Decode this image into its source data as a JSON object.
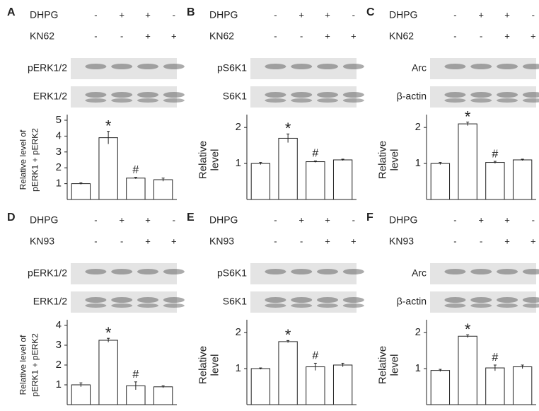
{
  "chart_data": [
    {
      "type": "bar",
      "panel": "A",
      "treatments": [
        {
          "name": "DHPG",
          "signs": [
            "-",
            "+",
            "+",
            "-"
          ]
        },
        {
          "name": "KN62",
          "signs": [
            "-",
            "-",
            "+",
            "+"
          ]
        }
      ],
      "blots": [
        "pERK1/2",
        "ERK1/2"
      ],
      "ylabel": [
        "Relative level of",
        "pERK1 + pERK2"
      ],
      "values": [
        1,
        3.9,
        1.35,
        1.25
      ],
      "errors": [
        0.05,
        0.4,
        0.05,
        0.1
      ],
      "markers": [
        null,
        "*",
        "#",
        null
      ],
      "color": "#ffffff",
      "ylim": [
        0,
        5
      ],
      "yticks": [
        1,
        2,
        3,
        4,
        5
      ]
    },
    {
      "type": "bar",
      "panel": "B",
      "treatments": [
        {
          "name": "DHPG",
          "signs": [
            "-",
            "+",
            "+",
            "-"
          ]
        },
        {
          "name": "KN62",
          "signs": [
            "-",
            "-",
            "+",
            "+"
          ]
        }
      ],
      "blots": [
        "pS6K1",
        "S6K1"
      ],
      "ylabel": [
        "Relative",
        "level"
      ],
      "values": [
        1,
        1.7,
        1.05,
        1.1
      ],
      "errors": [
        0.03,
        0.12,
        0.02,
        0.02
      ],
      "markers": [
        null,
        "*",
        "#",
        null
      ],
      "color": "#ffffff",
      "ylim": [
        0,
        2.2
      ],
      "yticks": [
        1,
        2
      ]
    },
    {
      "type": "bar",
      "panel": "C",
      "treatments": [
        {
          "name": "DHPG",
          "signs": [
            "-",
            "+",
            "+",
            "-"
          ]
        },
        {
          "name": "KN62",
          "signs": [
            "-",
            "-",
            "+",
            "+"
          ]
        }
      ],
      "blots": [
        "Arc",
        "β-actin"
      ],
      "ylabel": [
        "Relative",
        "level"
      ],
      "values": [
        1,
        2.1,
        1.03,
        1.1
      ],
      "errors": [
        0.03,
        0.05,
        0.03,
        0.02
      ],
      "markers": [
        null,
        "*",
        "#",
        null
      ],
      "color": "#ffffff",
      "ylim": [
        0,
        2.2
      ],
      "yticks": [
        1,
        2
      ]
    },
    {
      "type": "bar",
      "panel": "D",
      "treatments": [
        {
          "name": "DHPG",
          "signs": [
            "-",
            "+",
            "+",
            "-"
          ]
        },
        {
          "name": "KN93",
          "signs": [
            "-",
            "-",
            "+",
            "+"
          ]
        }
      ],
      "blots": [
        "pERK1/2",
        "ERK1/2"
      ],
      "ylabel": [
        "Relative level of",
        "pERK1 + pERK2"
      ],
      "values": [
        1,
        3.25,
        0.95,
        0.9
      ],
      "errors": [
        0.1,
        0.1,
        0.2,
        0.05
      ],
      "markers": [
        null,
        "*",
        "#",
        null
      ],
      "color": "#ffffff",
      "ylim": [
        0,
        4
      ],
      "yticks": [
        1,
        2,
        3,
        4
      ]
    },
    {
      "type": "bar",
      "panel": "E",
      "treatments": [
        {
          "name": "DHPG",
          "signs": [
            "-",
            "+",
            "+",
            "-"
          ]
        },
        {
          "name": "KN93",
          "signs": [
            "-",
            "-",
            "+",
            "+"
          ]
        }
      ],
      "blots": [
        "pS6K1",
        "S6K1"
      ],
      "ylabel": [
        "Relative",
        "level"
      ],
      "values": [
        1,
        1.75,
        1.05,
        1.1
      ],
      "errors": [
        0.02,
        0.03,
        0.1,
        0.05
      ],
      "markers": [
        null,
        "*",
        "#",
        null
      ],
      "color": "#ffffff",
      "ylim": [
        0,
        2.2
      ],
      "yticks": [
        1,
        2
      ]
    },
    {
      "type": "bar",
      "panel": "F",
      "treatments": [
        {
          "name": "DHPG",
          "signs": [
            "-",
            "+",
            "+",
            "-"
          ]
        },
        {
          "name": "KN93",
          "signs": [
            "-",
            "-",
            "+",
            "+"
          ]
        }
      ],
      "blots": [
        "Arc",
        "β-actin"
      ],
      "ylabel": [
        "Relative",
        "level"
      ],
      "values": [
        0.95,
        1.9,
        1.02,
        1.05
      ],
      "errors": [
        0.03,
        0.04,
        0.08,
        0.05
      ],
      "markers": [
        null,
        "*",
        "#",
        null
      ],
      "color": "#ffffff",
      "ylim": [
        0,
        2.2
      ],
      "yticks": [
        1,
        2
      ]
    }
  ]
}
